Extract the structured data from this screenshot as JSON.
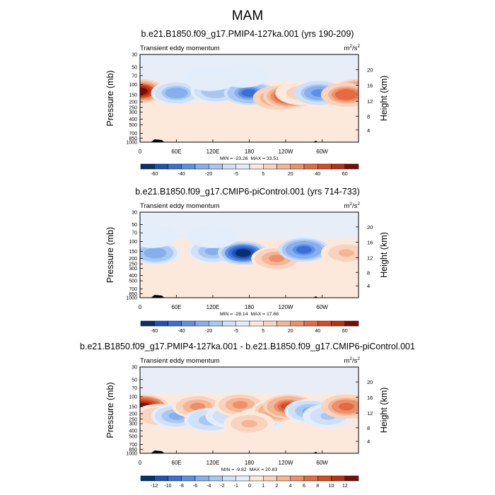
{
  "main_title": "MAM",
  "colors": {
    "neg": [
      "#08306b",
      "#1d52b8",
      "#3a6fd6",
      "#5c8fe8",
      "#86afee",
      "#a8c8f4",
      "#cfe0f8",
      "#e4eefb"
    ],
    "pos": [
      "#fde9dc",
      "#f9d3bd",
      "#f5b593",
      "#ee8f67",
      "#e66a40",
      "#d84b20",
      "#bd300f",
      "#7a0e04"
    ],
    "topography": "#000000"
  },
  "chart_data": [
    {
      "type": "heatmap",
      "title": "b.e21.B1850.f09_g17.PMIP4-127ka.001 (yrs 190-209)",
      "left_label": "Transient eddy momentum",
      "units_base": "m",
      "units_exp1": "2",
      "units_mid": "/s",
      "units_exp2": "2",
      "xlabel": "",
      "ylabel": "Pressure (mb)",
      "y2label": "Height (km)",
      "x_ticks": [
        "0",
        "60E",
        "120E",
        "180",
        "120W",
        "60W"
      ],
      "y_ticks": [
        "30",
        "50",
        "70",
        "100",
        "150",
        "200",
        "250",
        "300",
        "400",
        "500",
        "700",
        "850",
        "1000"
      ],
      "y2_ticks": [
        "20",
        "16",
        "12",
        "8",
        "4"
      ],
      "min_label": "MIN = -23.26",
      "max_label": "MAX = 33.51",
      "min": -23.26,
      "max": 33.51,
      "colorbar_labels": [
        "-60",
        "-40",
        "-20",
        "-5",
        "5",
        "20",
        "40",
        "60"
      ],
      "features": [
        {
          "lon": 0,
          "p": 130,
          "v": 30
        },
        {
          "lon": 60,
          "p": 140,
          "v": -15
        },
        {
          "lon": 125,
          "p": 130,
          "v": -12
        },
        {
          "lon": 180,
          "p": 140,
          "v": -22
        },
        {
          "lon": 228,
          "p": 170,
          "v": 20
        },
        {
          "lon": 245,
          "p": 160,
          "v": 24
        },
        {
          "lon": 265,
          "p": 140,
          "v": 6
        },
        {
          "lon": 295,
          "p": 140,
          "v": -18
        },
        {
          "lon": 340,
          "p": 150,
          "v": 20
        },
        {
          "lon": 115,
          "p": 80,
          "v": -3
        },
        {
          "lon": 170,
          "p": 70,
          "v": -3
        }
      ]
    },
    {
      "type": "heatmap",
      "title": "b.e21.B1850.f09_g17.CMIP6-piControl.001 (yrs 714-733)",
      "left_label": "Transient eddy momentum",
      "units_base": "m",
      "units_exp1": "2",
      "units_mid": "/s",
      "units_exp2": "2",
      "xlabel": "",
      "ylabel": "Pressure (mb)",
      "y2label": "Height (km)",
      "x_ticks": [
        "0",
        "60E",
        "120E",
        "180",
        "120W",
        "60W"
      ],
      "y_ticks": [
        "30",
        "50",
        "70",
        "100",
        "150",
        "200",
        "250",
        "300",
        "400",
        "500",
        "700",
        "850",
        "1000"
      ],
      "y2_ticks": [
        "20",
        "16",
        "12",
        "8",
        "4"
      ],
      "min_label": "MIN = -28.14",
      "max_label": "MAX = 17.68",
      "min": -28.14,
      "max": 17.68,
      "colorbar_labels": [
        "-60",
        "-40",
        "-20",
        "-5",
        "5",
        "20",
        "40",
        "60"
      ],
      "features": [
        {
          "lon": 0,
          "p": 140,
          "v": 6
        },
        {
          "lon": 25,
          "p": 160,
          "v": -14
        },
        {
          "lon": 120,
          "p": 150,
          "v": -12
        },
        {
          "lon": 170,
          "p": 160,
          "v": -26
        },
        {
          "lon": 225,
          "p": 200,
          "v": 12
        },
        {
          "lon": 270,
          "p": 140,
          "v": -20
        },
        {
          "lon": 340,
          "p": 160,
          "v": 8
        },
        {
          "lon": 120,
          "p": 80,
          "v": -3
        },
        {
          "lon": 20,
          "p": 80,
          "v": -3
        }
      ]
    },
    {
      "type": "heatmap",
      "title": "b.e21.B1850.f09_g17.PMIP4-127ka.001 - b.e21.B1850.f09_g17.CMIP6-piControl.001",
      "left_label": "Transient eddy momentum",
      "units_base": "m",
      "units_exp1": "2",
      "units_mid": "/s",
      "units_exp2": "2",
      "xlabel": "",
      "ylabel": "Pressure (mb)",
      "y2label": "Height (km)",
      "x_ticks": [
        "0",
        "60E",
        "120E",
        "180",
        "120W",
        "60W"
      ],
      "y_ticks": [
        "30",
        "50",
        "70",
        "100",
        "150",
        "200",
        "250",
        "300",
        "400",
        "500",
        "700",
        "850",
        "1000"
      ],
      "y2_ticks": [
        "20",
        "16",
        "12",
        "8",
        "4"
      ],
      "min_label": "MIN = -9.82",
      "max_label": "MAX = 20.83",
      "min": -9.82,
      "max": 20.83,
      "colorbar_labels": [
        "-12",
        "-10",
        "-8",
        "-6",
        "-4",
        "-2",
        "-1",
        "0",
        "1",
        "2",
        "4",
        "6",
        "8",
        "10",
        "12"
      ],
      "features": [
        {
          "lon": 5,
          "p": 150,
          "v": 20
        },
        {
          "lon": 30,
          "p": 220,
          "v": 6
        },
        {
          "lon": 60,
          "p": 220,
          "v": -8
        },
        {
          "lon": 95,
          "p": 150,
          "v": 8
        },
        {
          "lon": 115,
          "p": 260,
          "v": -7
        },
        {
          "lon": 150,
          "p": 220,
          "v": -5
        },
        {
          "lon": 165,
          "p": 140,
          "v": 9
        },
        {
          "lon": 200,
          "p": 250,
          "v": -6
        },
        {
          "lon": 225,
          "p": 180,
          "v": 10
        },
        {
          "lon": 245,
          "p": 150,
          "v": 14
        },
        {
          "lon": 280,
          "p": 180,
          "v": -8
        },
        {
          "lon": 310,
          "p": 220,
          "v": -6
        },
        {
          "lon": 340,
          "p": 150,
          "v": 12
        },
        {
          "lon": 180,
          "p": 300,
          "v": 6
        }
      ]
    }
  ]
}
